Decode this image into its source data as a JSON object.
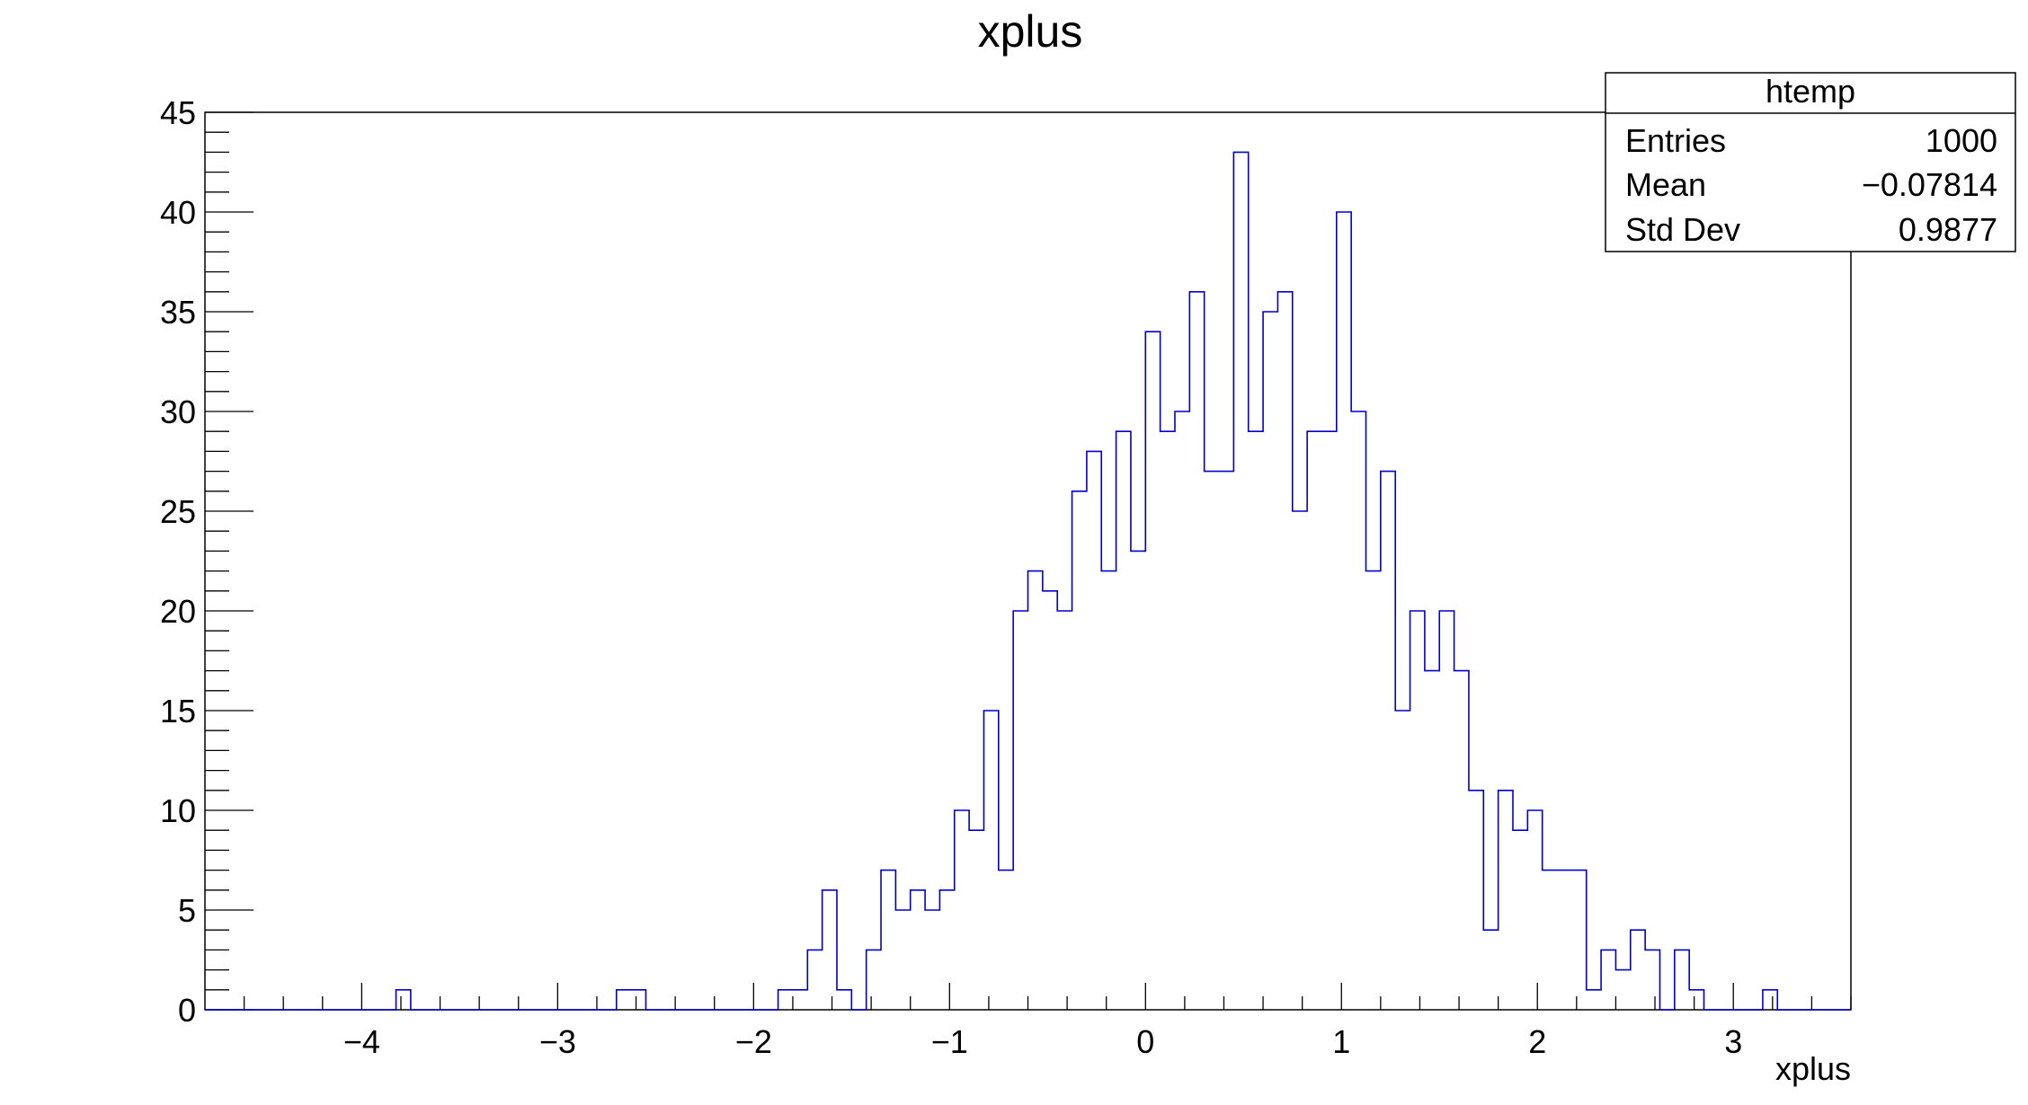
{
  "chart_data": {
    "type": "bar",
    "title": "xplus",
    "xlabel": "xplus",
    "ylabel": "",
    "xlim": [
      -4.8,
      3.6
    ],
    "ylim": [
      0,
      45
    ],
    "x_ticks": [
      -4,
      -3,
      -2,
      -1,
      0,
      1,
      2,
      3
    ],
    "x_tick_labels": [
      "−4",
      "−3",
      "−2",
      "−1",
      "0",
      "1",
      "2",
      "3"
    ],
    "y_ticks": [
      0,
      5,
      10,
      15,
      20,
      25,
      30,
      35,
      40,
      45
    ],
    "y_tick_labels": [
      "0",
      "5",
      "10",
      "15",
      "20",
      "25",
      "30",
      "35",
      "40",
      "45"
    ],
    "bin_width": 0.075,
    "bin_start": -4.8,
    "values": [
      0,
      0,
      0,
      0,
      0,
      0,
      0,
      0,
      0,
      0,
      0,
      0,
      0,
      1,
      0,
      0,
      0,
      0,
      0,
      0,
      0,
      0,
      0,
      0,
      0,
      0,
      0,
      0,
      1,
      1,
      0,
      0,
      0,
      0,
      0,
      0,
      0,
      0,
      0,
      1,
      1,
      3,
      6,
      1,
      0,
      3,
      7,
      5,
      6,
      5,
      6,
      10,
      9,
      15,
      7,
      20,
      22,
      21,
      20,
      26,
      28,
      22,
      29,
      23,
      34,
      29,
      30,
      36,
      27,
      27,
      43,
      29,
      35,
      36,
      25,
      29,
      29,
      40,
      30,
      22,
      27,
      15,
      20,
      17,
      20,
      17,
      11,
      4,
      11,
      9,
      10,
      7,
      7,
      7,
      1,
      3,
      2,
      4,
      3,
      0,
      3,
      1,
      0,
      0,
      0,
      0,
      1,
      0,
      0,
      0,
      0,
      0
    ],
    "series": [
      {
        "color": "#0000cc"
      }
    ],
    "grid": false,
    "legend": "none"
  },
  "stats_box": {
    "title": "htemp",
    "rows": [
      {
        "label": "Entries",
        "value": "1000"
      },
      {
        "label": "Mean",
        "value": "−0.07814"
      },
      {
        "label": "Std Dev",
        "value": "0.9877"
      }
    ]
  }
}
